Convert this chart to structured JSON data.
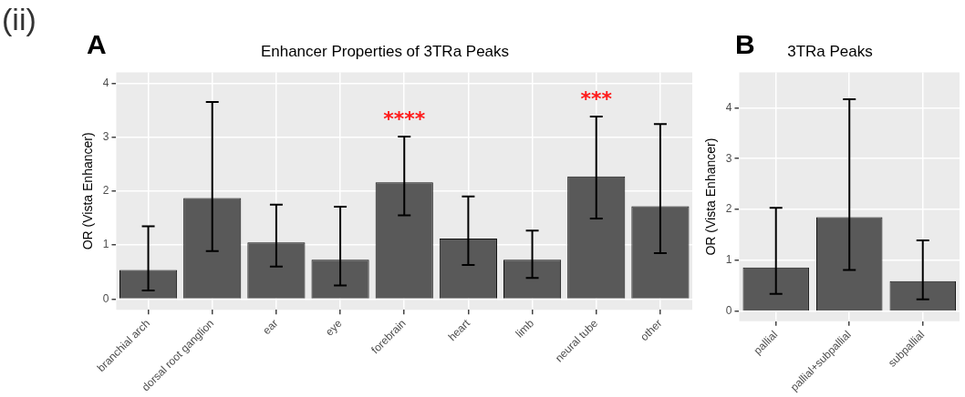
{
  "chart_data": [
    {
      "type": "bar",
      "title": "Enhancer Properties of 3TRa Peaks",
      "ylabel": "OR (Vista Enhancer)",
      "categories": [
        "branchial arch",
        "dorsal root ganglion",
        "ear",
        "eye",
        "forebrain",
        "heart",
        "limb",
        "neural tube",
        "other"
      ],
      "values": [
        0.54,
        1.87,
        1.05,
        0.73,
        2.16,
        1.12,
        0.73,
        2.27,
        1.72
      ],
      "errors": [
        [
          0.16,
          1.35
        ],
        [
          0.89,
          3.65
        ],
        [
          0.6,
          1.75
        ],
        [
          0.25,
          1.71
        ],
        [
          1.55,
          3.01
        ],
        [
          0.63,
          1.9
        ],
        [
          0.39,
          1.27
        ],
        [
          1.49,
          3.38
        ],
        [
          0.85,
          3.24
        ]
      ],
      "color": "#595959",
      "ylim": [
        -0.2,
        4.2
      ],
      "yticks": [
        0,
        1,
        2,
        3,
        4
      ],
      "grid": true,
      "legend": false,
      "annotations": [
        "(ii)",
        "A",
        {
          "text": "****",
          "x": "forebrain",
          "y": 3.01
        },
        {
          "text": "***",
          "x": "neural tube",
          "y": 3.38
        }
      ]
    },
    {
      "type": "bar",
      "title": "3TRa Peaks",
      "ylabel": "OR (Vista Enhancer)",
      "categories": [
        "pallial",
        "pallial+subpallial",
        "subpallial"
      ],
      "values": [
        0.86,
        1.85,
        0.59
      ],
      "errors": [
        [
          0.34,
          2.03
        ],
        [
          0.81,
          4.17
        ],
        [
          0.23,
          1.39
        ]
      ],
      "color": "#595959",
      "ylim": [
        -0.2,
        4.7
      ],
      "yticks": [
        0,
        1,
        2,
        3,
        4
      ],
      "grid": true,
      "legend": false,
      "annotations": [
        "B"
      ]
    }
  ]
}
